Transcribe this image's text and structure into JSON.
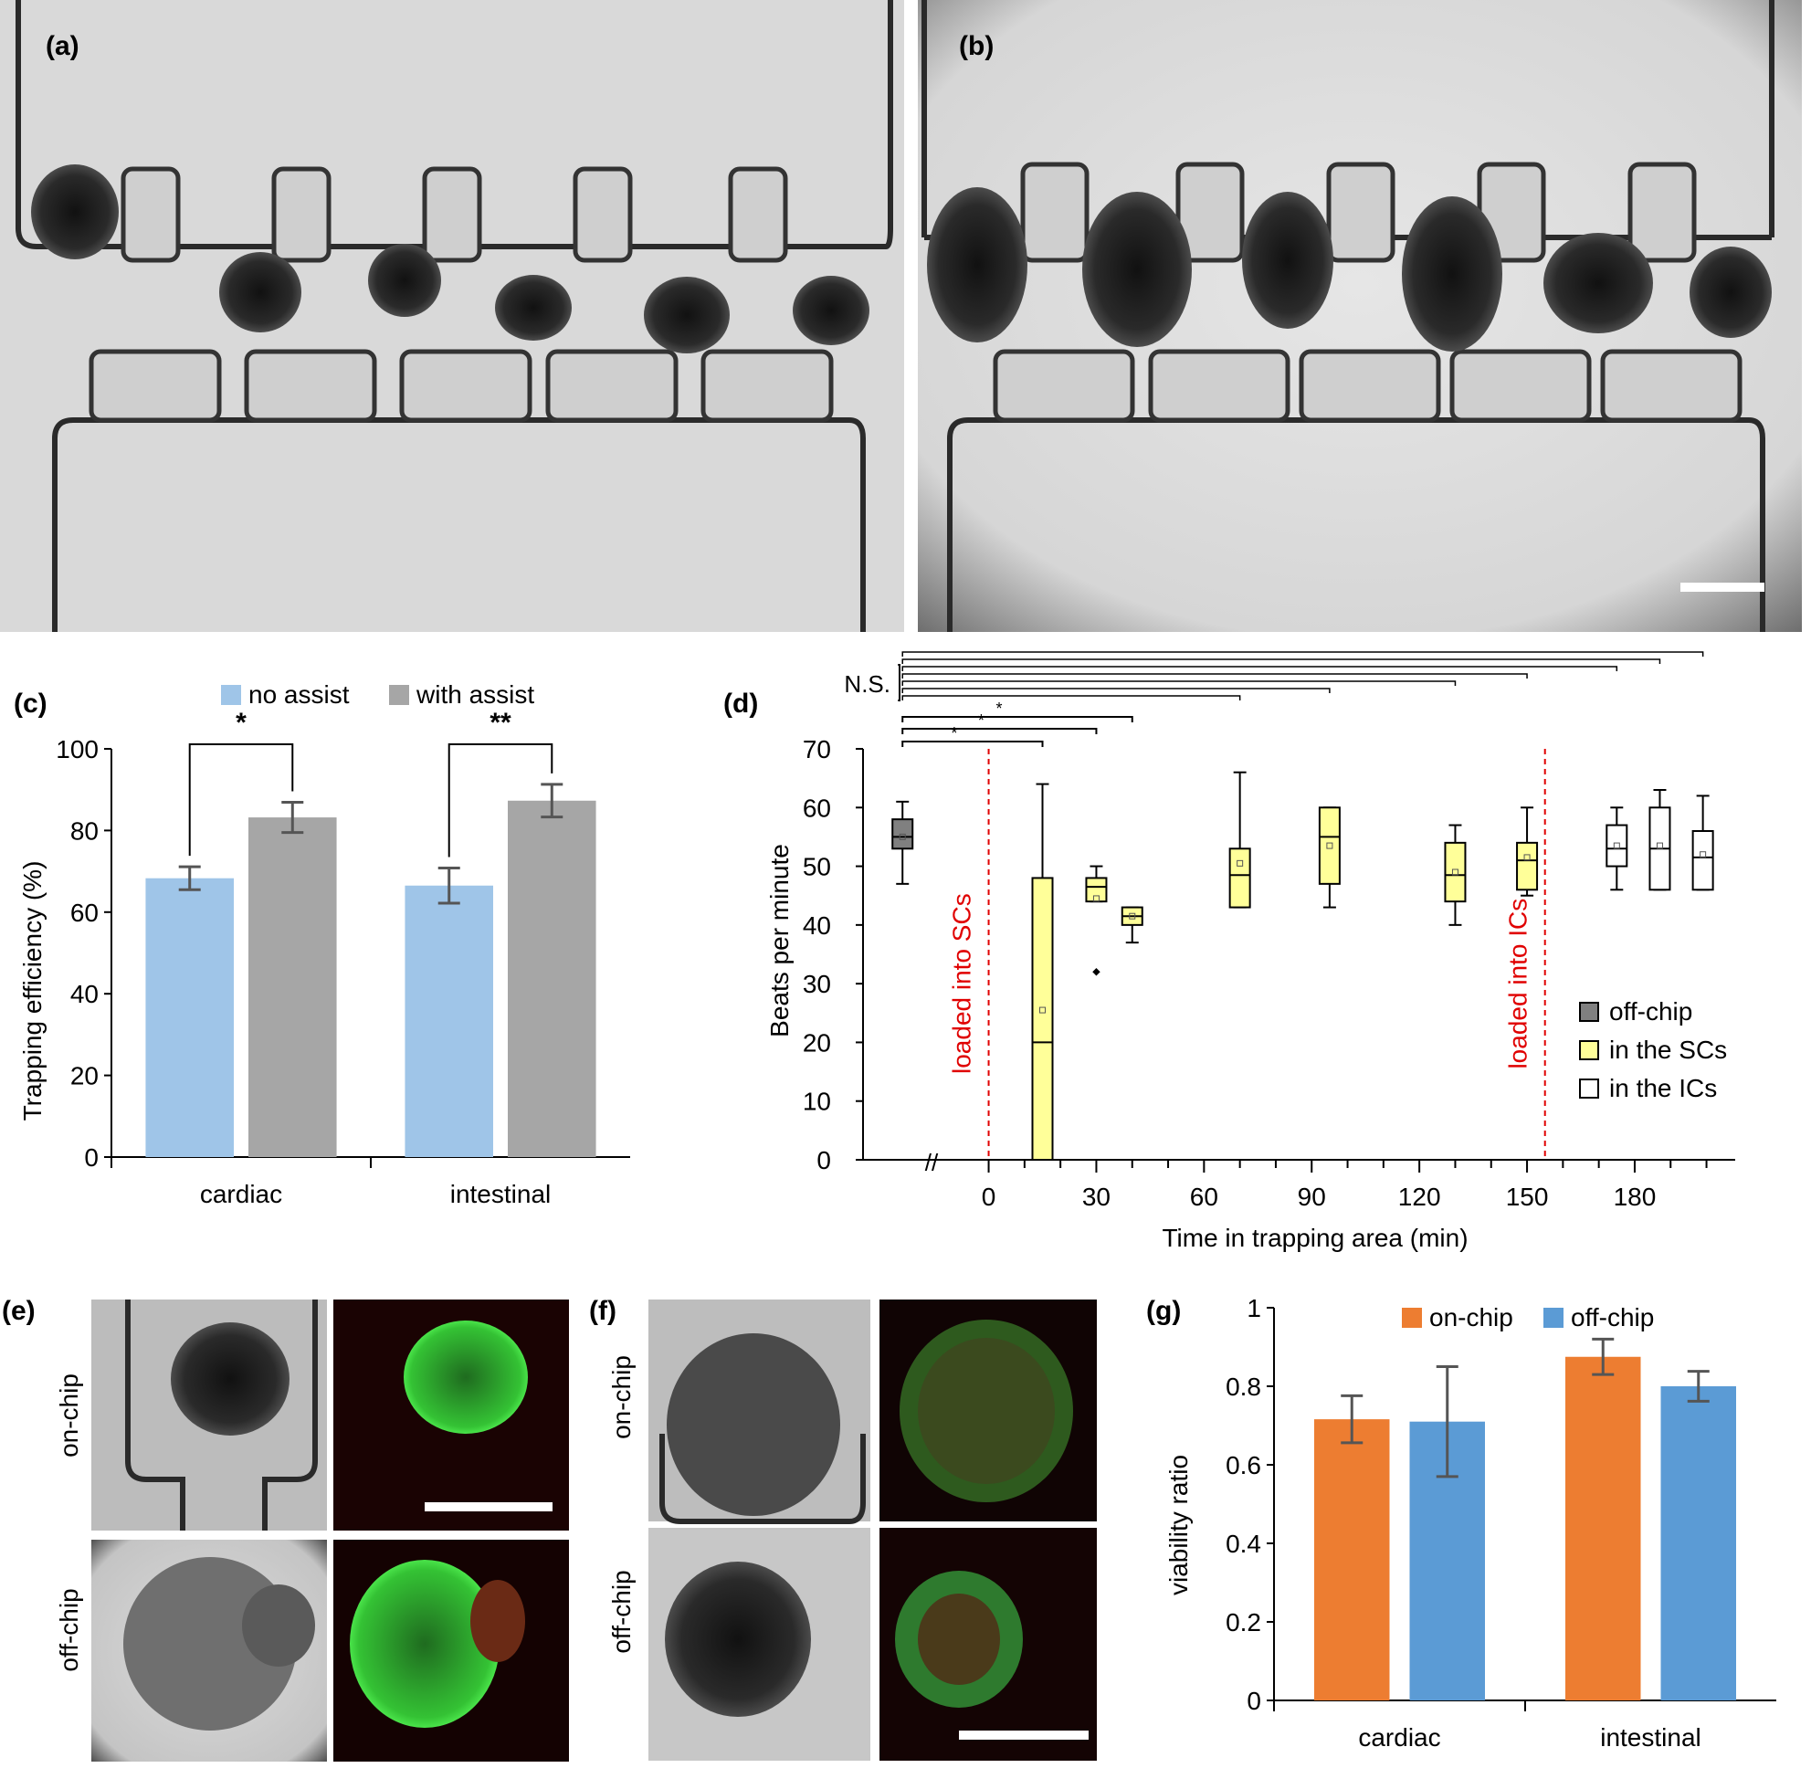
{
  "panels": {
    "a": {
      "label": "(a)"
    },
    "b": {
      "label": "(b)"
    },
    "c": {
      "label": "(c)"
    },
    "d": {
      "label": "(d)"
    },
    "e": {
      "label": "(e)",
      "row_labels": [
        "on-chip",
        "off-chip"
      ]
    },
    "f": {
      "label": "(f)",
      "row_labels": [
        "on-chip",
        "off-chip"
      ]
    },
    "g": {
      "label": "(g)"
    }
  },
  "chart_data": [
    {
      "id": "c",
      "type": "bar",
      "categories": [
        "cardiac",
        "intestinal"
      ],
      "series": [
        {
          "name": "no assist",
          "color": "#9fc5e8",
          "values": [
            68.3,
            66.5
          ],
          "errors": [
            2.8,
            4.3
          ]
        },
        {
          "name": "with assist",
          "color": "#a6a6a6",
          "values": [
            83.2,
            87.3
          ],
          "errors": [
            3.7,
            4.0
          ]
        }
      ],
      "ylabel": "Trapping efficiency (%)",
      "ylim": [
        0,
        100
      ],
      "yticks": [
        0,
        20,
        40,
        60,
        80,
        100
      ],
      "significance": [
        "*",
        "**"
      ],
      "legend": "top",
      "grid": false
    },
    {
      "id": "d",
      "type": "box",
      "xlabel": "Time in trapping area (min)",
      "ylabel": "Beats per minute",
      "ylim": [
        0,
        70
      ],
      "yticks": [
        0,
        10,
        20,
        30,
        40,
        50,
        60,
        70
      ],
      "xticks": [
        0,
        30,
        60,
        90,
        120,
        150,
        180
      ],
      "xlim": [
        -35,
        208
      ],
      "axis_break": "//",
      "vlines": [
        {
          "x": 0,
          "label": "loaded into SCs"
        },
        {
          "x": 155,
          "label": "loaded into ICs"
        }
      ],
      "legend_entries": [
        {
          "name": "off-chip",
          "color": "#808080"
        },
        {
          "name": "in the SCs",
          "color": "#ffff99"
        },
        {
          "name": "in the ICs",
          "color": "#ffffff"
        }
      ],
      "groups": [
        {
          "series": "off-chip",
          "x": -24,
          "whisker_low": 47,
          "q1": 53,
          "median": 55,
          "q3": 58,
          "whisker_high": 61,
          "mean": 55
        },
        {
          "series": "in the SCs",
          "x": 15,
          "whisker_low": 0,
          "q1": 0,
          "median": 20,
          "q3": 48,
          "whisker_high": 64,
          "mean": 25.5
        },
        {
          "series": "in the SCs",
          "x": 30,
          "whisker_low": 44,
          "q1": 44,
          "median": 46.5,
          "q3": 48,
          "whisker_high": 50,
          "mean": 44.5,
          "outliers": [
            32
          ]
        },
        {
          "series": "in the SCs",
          "x": 40,
          "whisker_low": 37,
          "q1": 40,
          "median": 41.5,
          "q3": 43,
          "whisker_high": 43,
          "mean": 41.5
        },
        {
          "series": "in the SCs",
          "x": 70,
          "whisker_low": 43,
          "q1": 43,
          "median": 48.5,
          "q3": 53,
          "whisker_high": 66,
          "mean": 50.5
        },
        {
          "series": "in the SCs",
          "x": 95,
          "whisker_low": 43,
          "q1": 47,
          "median": 55,
          "q3": 60,
          "whisker_high": 60,
          "mean": 53.5
        },
        {
          "series": "in the SCs",
          "x": 130,
          "whisker_low": 40,
          "q1": 44,
          "median": 48.5,
          "q3": 54,
          "whisker_high": 57,
          "mean": 49
        },
        {
          "series": "in the SCs",
          "x": 150,
          "whisker_low": 45,
          "q1": 46,
          "median": 51,
          "q3": 54,
          "whisker_high": 60,
          "mean": 51.5
        },
        {
          "series": "in the ICs",
          "x": 175,
          "whisker_low": 46,
          "q1": 50,
          "median": 53,
          "q3": 57,
          "whisker_high": 60,
          "mean": 53.5
        },
        {
          "series": "in the ICs",
          "x": 187,
          "whisker_low": 46,
          "q1": 46,
          "median": 53,
          "q3": 60,
          "whisker_high": 63,
          "mean": 53.5
        },
        {
          "series": "in the ICs",
          "x": 199,
          "whisker_low": 46,
          "q1": 46,
          "median": 51.5,
          "q3": 56,
          "whisker_high": 62,
          "mean": 52
        }
      ],
      "brackets_star": [
        {
          "to": 15,
          "label": "*"
        },
        {
          "to": 30,
          "label": "*"
        },
        {
          "to": 40,
          "label": "*"
        }
      ],
      "brackets_ns": {
        "label": "N.S.",
        "to": [
          70,
          95,
          130,
          150,
          175,
          187,
          199
        ]
      }
    },
    {
      "id": "g",
      "type": "bar",
      "categories": [
        "cardiac",
        "intestinal"
      ],
      "series": [
        {
          "name": "on-chip",
          "color": "#ed7d31",
          "values": [
            0.716,
            0.875
          ],
          "errors": [
            0.06,
            0.045
          ]
        },
        {
          "name": "off-chip",
          "color": "#5b9bd5",
          "values": [
            0.71,
            0.8
          ],
          "errors": [
            0.14,
            0.038
          ]
        }
      ],
      "ylabel": "viability ratio",
      "ylim": [
        0,
        1
      ],
      "yticks": [
        "0",
        "0.2",
        "0.4",
        "0.6",
        "0.8",
        "1"
      ],
      "legend": "top",
      "grid": false
    }
  ]
}
